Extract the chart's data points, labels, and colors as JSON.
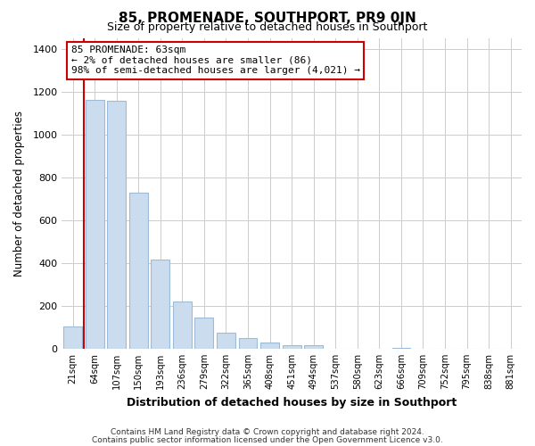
{
  "title": "85, PROMENADE, SOUTHPORT, PR9 0JN",
  "subtitle": "Size of property relative to detached houses in Southport",
  "xlabel": "Distribution of detached houses by size in Southport",
  "ylabel": "Number of detached properties",
  "footer_lines": [
    "Contains HM Land Registry data © Crown copyright and database right 2024.",
    "Contains public sector information licensed under the Open Government Licence v3.0."
  ],
  "bin_labels": [
    "21sqm",
    "64sqm",
    "107sqm",
    "150sqm",
    "193sqm",
    "236sqm",
    "279sqm",
    "322sqm",
    "365sqm",
    "408sqm",
    "451sqm",
    "494sqm",
    "537sqm",
    "580sqm",
    "623sqm",
    "666sqm",
    "709sqm",
    "752sqm",
    "795sqm",
    "838sqm",
    "881sqm"
  ],
  "bar_values": [
    105,
    1160,
    1155,
    730,
    415,
    220,
    145,
    75,
    50,
    30,
    15,
    15,
    0,
    0,
    0,
    5,
    0,
    0,
    0,
    0,
    0
  ],
  "bar_color": "#ccdcef",
  "bar_edge_color": "#9bbbd8",
  "subject_line_color": "#cc0000",
  "annotation_text_lines": [
    "85 PROMENADE: 63sqm",
    "← 2% of detached houses are smaller (86)",
    "98% of semi-detached houses are larger (4,021) →"
  ],
  "annotation_box_color": "#ffffff",
  "annotation_box_edge": "#cc0000",
  "ylim": [
    0,
    1450
  ],
  "yticks": [
    0,
    200,
    400,
    600,
    800,
    1000,
    1200,
    1400
  ],
  "grid_color": "#cccccc",
  "bg_color": "#ffffff",
  "plot_bg_color": "#ffffff"
}
